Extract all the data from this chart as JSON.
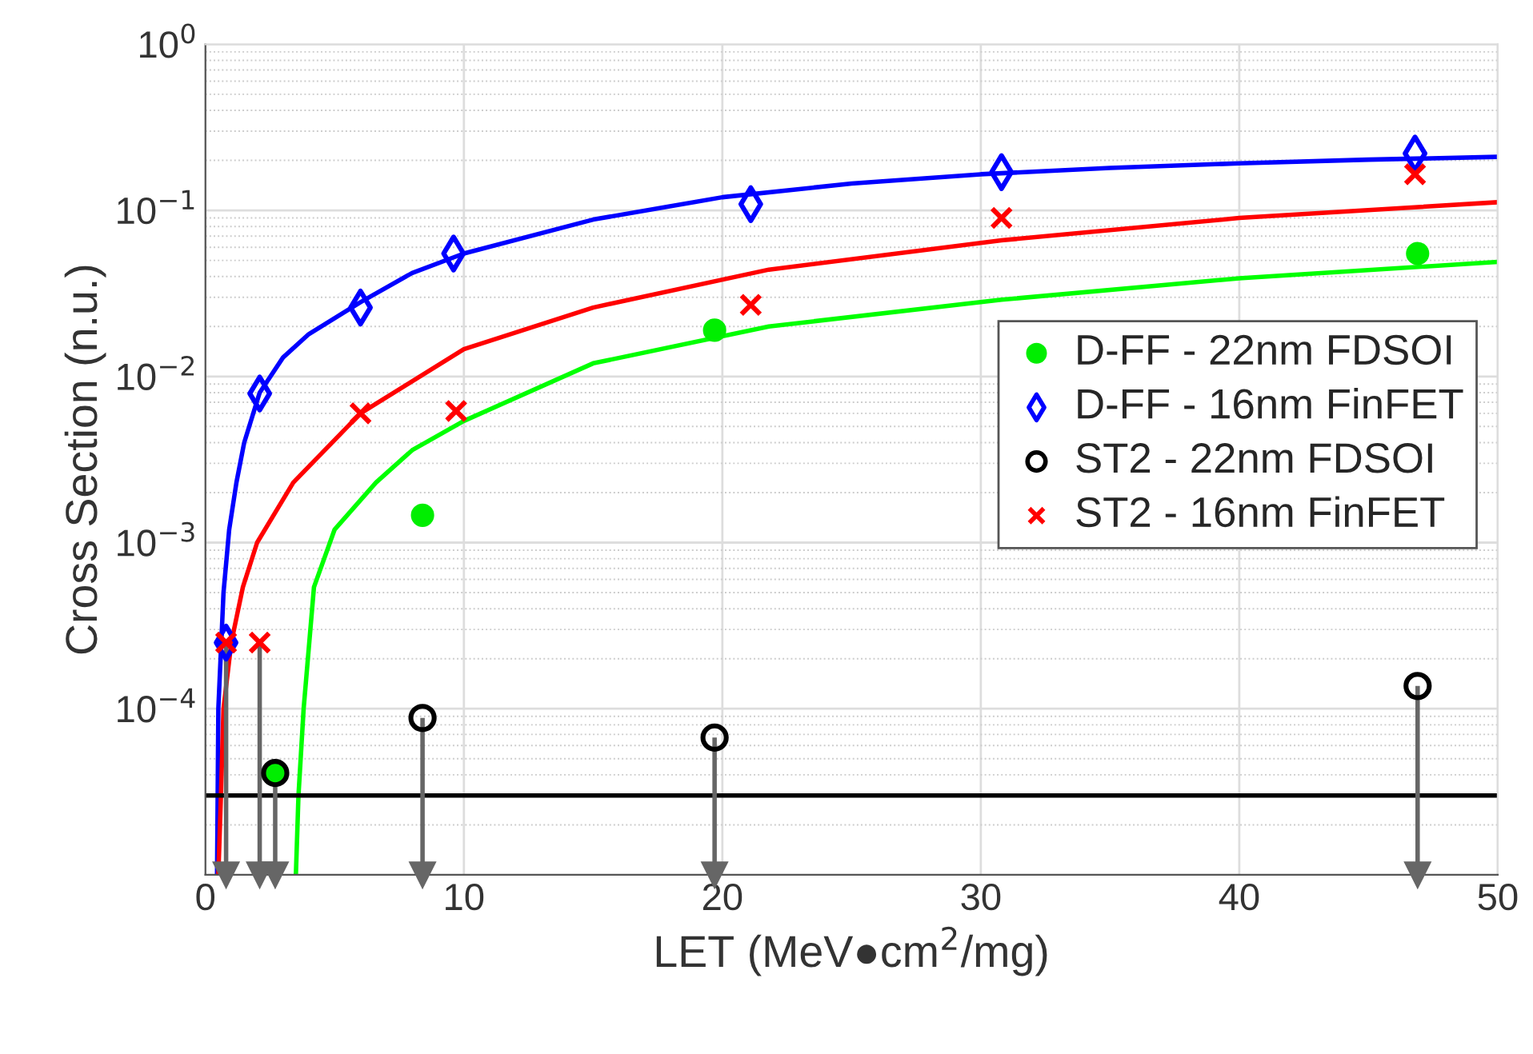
{
  "chart_data": {
    "type": "scatter",
    "xlabel": "LET (MeV●cm$^{2}$/mg)",
    "ylabel": "Cross Section (n.u.)",
    "xlim": [
      0,
      50
    ],
    "xticks": [
      0,
      10,
      20,
      30,
      40,
      50
    ],
    "ylim": [
      1e-05,
      1
    ],
    "yticks": [
      {
        "value": 0.0001,
        "label": "10$^{−4}$"
      },
      {
        "value": 0.001,
        "label": "10$^{−3}$"
      },
      {
        "value": 0.01,
        "label": "10$^{−2}$"
      },
      {
        "value": 0.1,
        "label": "10$^{−1}$"
      },
      {
        "value": 1,
        "label": "10$^{0}$"
      }
    ],
    "log": "y",
    "grid": true,
    "legend": "center right",
    "ref_lines": [
      {
        "axis": "y",
        "value": 3e-05,
        "color": "#000000",
        "line_style": "solid"
      }
    ],
    "series": [
      {
        "type": "line",
        "color": "#0000ff",
        "marker": "none",
        "x": [
          0.45,
          0.5,
          0.7,
          0.92,
          1.2,
          1.5,
          2.1,
          3,
          4,
          6,
          8,
          10,
          15,
          20,
          25,
          30,
          35,
          40,
          45,
          50
        ],
        "values": [
          1e-05,
          0.0001,
          0.0005,
          0.0012,
          0.0023,
          0.004,
          0.008,
          0.013,
          0.018,
          0.028,
          0.042,
          0.055,
          0.088,
          0.12,
          0.145,
          0.165,
          0.18,
          0.192,
          0.202,
          0.21
        ]
      },
      {
        "type": "line",
        "color": "#ff0000",
        "marker": "none",
        "x": [
          0.5,
          0.6,
          0.7,
          1,
          1.45,
          2,
          3.4,
          6,
          10,
          15,
          21.8,
          30.8,
          40,
          50
        ],
        "values": [
          1e-05,
          3e-05,
          0.0001,
          0.00025,
          0.00054,
          0.001,
          0.0023,
          0.006,
          0.0146,
          0.026,
          0.044,
          0.066,
          0.09,
          0.112
        ]
      },
      {
        "type": "line",
        "color": "#00ff00",
        "marker": "none",
        "x": [
          3.5,
          3.6,
          3.8,
          4.2,
          5,
          6.6,
          8,
          10,
          15,
          21.8,
          30.8,
          40,
          50
        ],
        "values": [
          1e-05,
          3e-05,
          0.0001,
          0.00054,
          0.0012,
          0.0023,
          0.0036,
          0.0054,
          0.012,
          0.02,
          0.029,
          0.039,
          0.049
        ]
      },
      {
        "name": "D-FF - 22nm FDSOI",
        "color": "#00ee00",
        "marker": "circle",
        "x": [
          2.7,
          8.4,
          19.7,
          46.9
        ],
        "values": [
          4.1e-05,
          0.00146,
          0.019,
          0.055
        ]
      },
      {
        "name": "D-FF - 16nm FinFET",
        "color": "#0000ff",
        "marker": "diamond",
        "x": [
          0.8,
          2.1,
          6.0,
          9.6,
          21.1,
          30.8,
          46.8
        ],
        "values": [
          0.00025,
          0.0079,
          0.026,
          0.055,
          0.109,
          0.17,
          0.22
        ],
        "errors": [
          [
            1e-05,
            0.00025
          ],
          null,
          null,
          null,
          null,
          null,
          null
        ]
      },
      {
        "name": "ST2 - 22nm FDSOI",
        "color": "#000000",
        "marker": "circle",
        "x": [
          2.7,
          8.4,
          19.7,
          46.9
        ],
        "values": [
          4.1e-05,
          8.8e-05,
          6.7e-05,
          0.000137
        ],
        "errors": [
          [
            1e-05,
            4.1e-05
          ],
          [
            1e-05,
            8.8e-05
          ],
          [
            1e-05,
            6.7e-05
          ],
          [
            1e-05,
            0.000137
          ]
        ]
      },
      {
        "name": "ST2 - 16nm FinFET",
        "color": "#ff0000",
        "marker": "cross",
        "x": [
          0.8,
          2.1,
          6.0,
          9.7,
          21.1,
          30.8,
          46.8
        ],
        "values": [
          0.00025,
          0.00025,
          0.006,
          0.0062,
          0.027,
          0.09,
          0.165
        ],
        "errors": [
          null,
          [
            1e-05,
            0.00025
          ],
          null,
          null,
          null,
          null,
          null
        ]
      }
    ]
  }
}
